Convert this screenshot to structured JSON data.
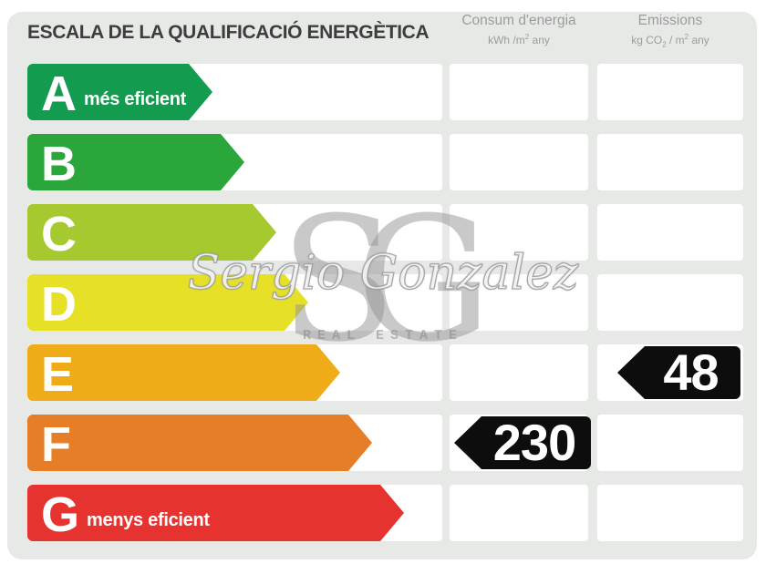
{
  "title": "ESCALA DE LA QUALIFICACIÓ ENERGÈTICA",
  "columns": {
    "consum": {
      "label": "Consum d'energia",
      "unit_pre": "kWh /m",
      "unit_sup": "2",
      "unit_post": " any"
    },
    "emissions": {
      "label": "Emissions",
      "unit_pre": "kg CO",
      "unit_sub": "2",
      "unit_mid": " / m",
      "unit_sup": "2",
      "unit_post": " any"
    }
  },
  "scale": {
    "ratings": [
      {
        "letter": "A",
        "note": "més eficient",
        "color": "#139c4f"
      },
      {
        "letter": "B",
        "note": "",
        "color": "#2ba63a"
      },
      {
        "letter": "C",
        "note": "",
        "color": "#a5c92f"
      },
      {
        "letter": "D",
        "note": "",
        "color": "#e6e126"
      },
      {
        "letter": "E",
        "note": "",
        "color": "#f0ac18"
      },
      {
        "letter": "F",
        "note": "",
        "color": "#e57e26"
      },
      {
        "letter": "G",
        "note": "menys eficient",
        "color": "#e63330"
      }
    ]
  },
  "values": {
    "consum": {
      "value": "230",
      "row": "F",
      "color": "#0d0d0d"
    },
    "emissions": {
      "value": "48",
      "row": "E",
      "color": "#0d0d0d"
    }
  },
  "watermark": {
    "monogram": "SG",
    "name": "Sergio Gonzalez",
    "tagline": "REAL ESTATE"
  },
  "palette": {
    "page_bg": "#ffffff",
    "panel_bg": "#e7e9e7",
    "cell_bg": "#ffffff",
    "title_color": "#3d3d3d",
    "header_color": "#9c9c9c",
    "bar_text": "#ffffff",
    "value_text": "#ffffff"
  },
  "chart_data": {
    "type": "bar",
    "title": "ESCALA DE LA QUALIFICACIÓ ENERGÈTICA",
    "categories": [
      "A",
      "B",
      "C",
      "D",
      "E",
      "F",
      "G"
    ],
    "category_notes": {
      "A": "més eficient",
      "G": "menys eficient"
    },
    "bar_colors": [
      "#139c4f",
      "#2ba63a",
      "#a5c92f",
      "#e6e126",
      "#f0ac18",
      "#e57e26",
      "#e63330"
    ],
    "series": [
      {
        "name": "Consum d'energia (kWh/m2 any)",
        "rating": "F",
        "value": 230
      },
      {
        "name": "Emissions (kg CO2/m2 any)",
        "rating": "E",
        "value": 48
      }
    ],
    "legend_position": "none",
    "grid": false
  }
}
